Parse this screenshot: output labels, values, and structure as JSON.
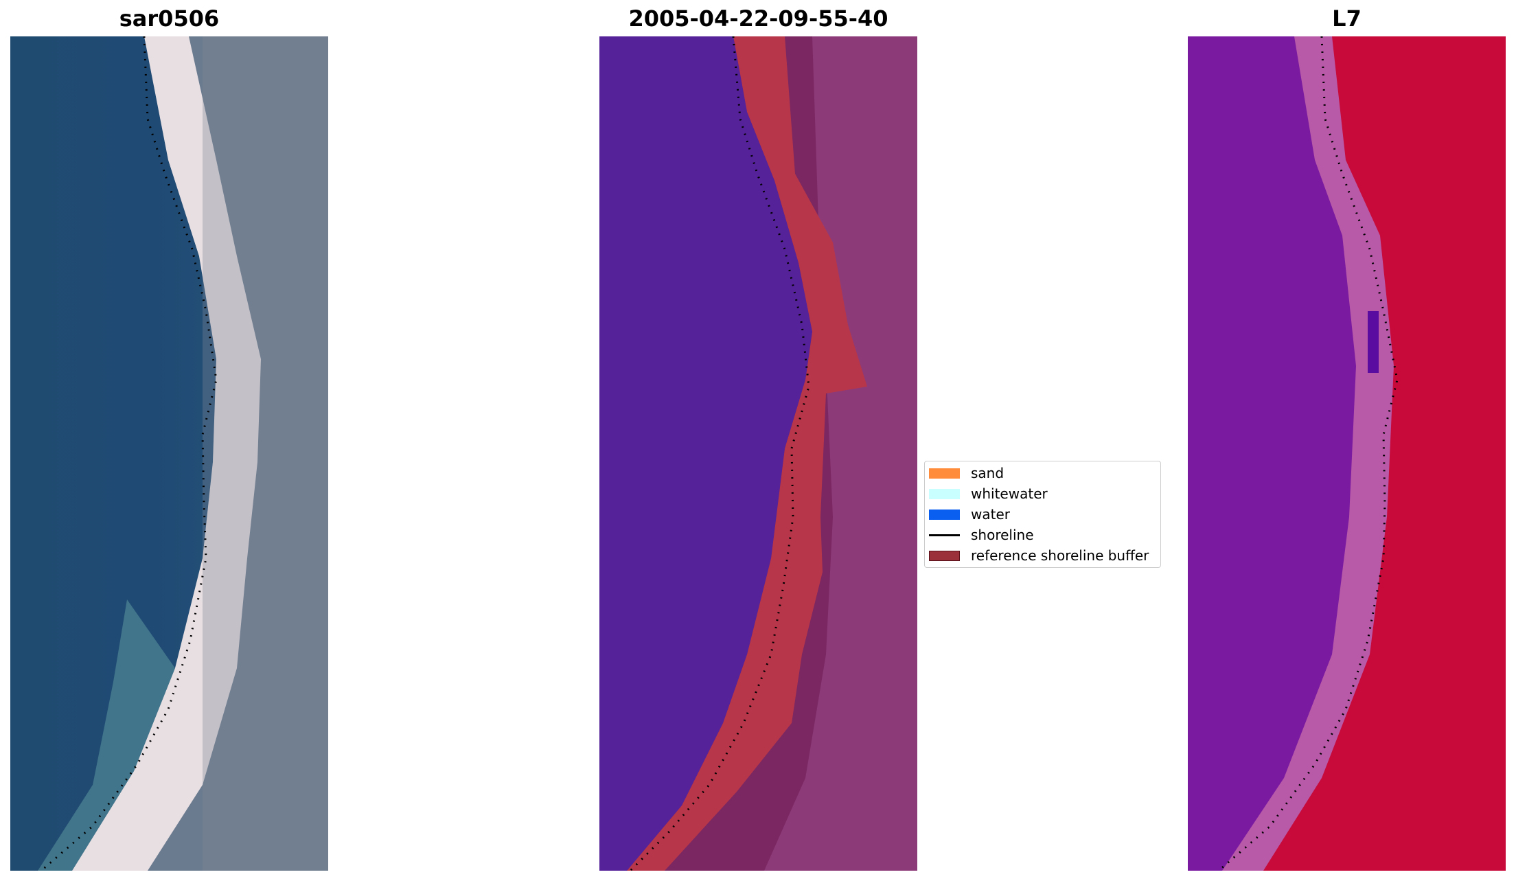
{
  "panels": [
    {
      "title": "sar0506"
    },
    {
      "title": "2005-04-22-09-55-40"
    },
    {
      "title": "L7"
    }
  ],
  "legend": {
    "items": [
      {
        "label": "sand",
        "color": "#ff8c3a",
        "kind": "patch"
      },
      {
        "label": "whitewater",
        "color": "#c9ffff",
        "kind": "patch"
      },
      {
        "label": "water",
        "color": "#0a5ff0",
        "kind": "patch"
      },
      {
        "label": "shoreline",
        "color": "#000000",
        "kind": "line"
      },
      {
        "label": "reference shoreline buffer",
        "color": "#9b2f3a",
        "kind": "patch"
      }
    ]
  },
  "colors": {
    "ocean": "#1f4d78",
    "beach": "#ece3e6",
    "land_gray": "#6c7a8c",
    "classified_water": "#55229a",
    "buffer_red": "#b8364a",
    "land_mauve": "#7a2762",
    "mndwi_purple": "#7a1aa0",
    "mndwi_pink": "#b85aa8",
    "mndwi_red": "#c70a3a"
  }
}
